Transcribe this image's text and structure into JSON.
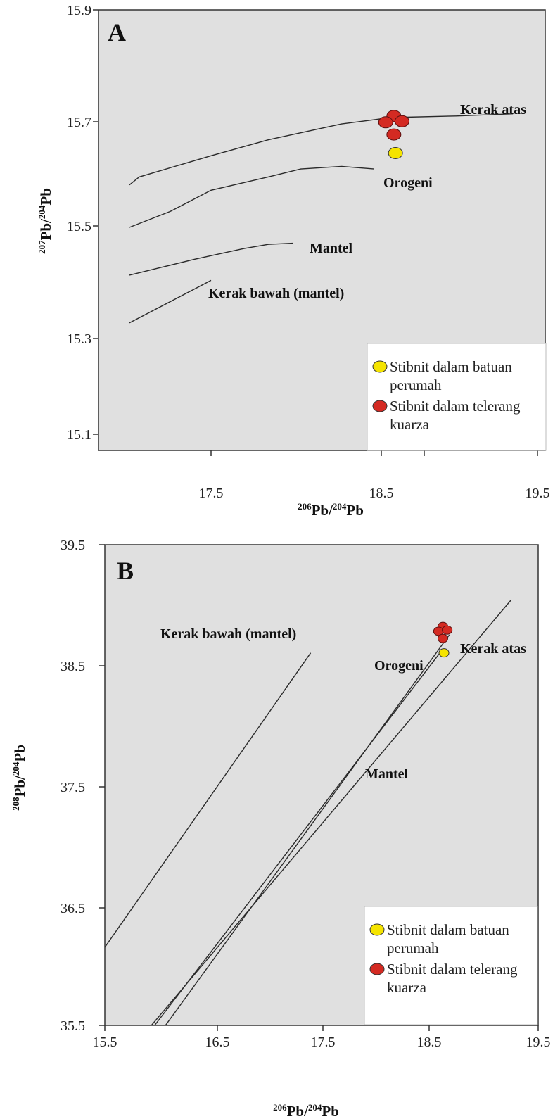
{
  "chart_data": [
    {
      "panel": "A",
      "type": "line",
      "xlabel": "206Pb/204Pb",
      "ylabel": "207Pb/204Pb",
      "xlabel_parts": {
        "sup1": "206",
        "base1": "Pb/",
        "sup2": "204",
        "base2": "Pb"
      },
      "ylabel_parts": {
        "sup1": "207",
        "base1": "Pb/",
        "sup2": "204",
        "base2": "Pb"
      },
      "xticks": [
        "17.5",
        "18.5",
        "19.5"
      ],
      "yticks": [
        "15.9",
        "15.7",
        "15.5",
        "15.3",
        "15.1"
      ],
      "xlim": [
        17.0,
        19.5
      ],
      "ylim": [
        15.07,
        15.9
      ],
      "grid": false,
      "background": "#e0e0e0",
      "series": [
        {
          "name": "Kerak atas",
          "x": [
            17.0,
            17.06,
            17.5,
            17.85,
            18.3,
            18.6,
            19.0,
            19.35
          ],
          "y": [
            15.57,
            15.585,
            15.625,
            15.655,
            15.685,
            15.697,
            15.7,
            15.704
          ]
        },
        {
          "name": "Orogeni",
          "x": [
            17.0,
            17.25,
            17.5,
            17.85,
            18.05,
            18.3,
            18.5
          ],
          "y": [
            15.49,
            15.52,
            15.56,
            15.585,
            15.6,
            15.605,
            15.6
          ]
        },
        {
          "name": "Mantel",
          "x": [
            17.0,
            17.4,
            17.7,
            17.85,
            18.0
          ],
          "y": [
            15.4,
            15.43,
            15.45,
            15.458,
            15.46
          ]
        },
        {
          "name": "Kerak bawah (mantel)",
          "x": [
            17.0,
            17.5
          ],
          "y": [
            15.31,
            15.39
          ]
        }
      ],
      "points": {
        "host_rock": [
          {
            "x": 18.63,
            "y": 15.63
          }
        ],
        "quartz_vein": [
          {
            "x": 18.62,
            "y": 15.7
          },
          {
            "x": 18.57,
            "y": 15.688
          },
          {
            "x": 18.67,
            "y": 15.69
          },
          {
            "x": 18.62,
            "y": 15.665
          }
        ]
      },
      "legend": {
        "placement": "bottom-right",
        "entries": [
          {
            "line1": "Stibnit dalam batuan",
            "line2": "perumah",
            "color": "#f5e400"
          },
          {
            "line1": "Stibnit dalam telerang",
            "line2": "kuarza",
            "color": "#d42a22"
          }
        ]
      }
    },
    {
      "panel": "B",
      "type": "line",
      "xlabel": "206Pb/204Pb",
      "ylabel": "208Pb/204Pb",
      "xlabel_parts": {
        "sup1": "206",
        "base1": "Pb/",
        "sup2": "204",
        "base2": "Pb"
      },
      "ylabel_parts": {
        "sup1": "208",
        "base1": "Pb/",
        "sup2": "204",
        "base2": "Pb"
      },
      "xticks": [
        "15.5",
        "16.5",
        "17.5",
        "18.5",
        "19.5"
      ],
      "yticks": [
        "39.5",
        "38.5",
        "37.5",
        "36.5",
        "35.5"
      ],
      "xlim": [
        15.5,
        19.5
      ],
      "ylim": [
        35.5,
        39.5
      ],
      "grid": false,
      "background": "#e0e0e0",
      "series": [
        {
          "name": "Kerak bawah (mantel)",
          "x": [
            15.5,
            17.4
          ],
          "y": [
            36.15,
            38.6
          ]
        },
        {
          "name": "Orogeni",
          "x": [
            15.96,
            18.61
          ],
          "y": [
            35.5,
            38.62
          ]
        },
        {
          "name": "Kerak atas",
          "x": [
            15.93,
            19.25
          ],
          "y": [
            35.5,
            39.04
          ]
        },
        {
          "name": "Mantel",
          "x": [
            16.06,
            18.68
          ],
          "y": [
            35.5,
            38.75
          ]
        }
      ],
      "points": {
        "host_rock": [
          {
            "x": 18.63,
            "y": 38.6
          }
        ],
        "quartz_vein": [
          {
            "x": 18.62,
            "y": 38.82
          },
          {
            "x": 18.58,
            "y": 38.78
          },
          {
            "x": 18.66,
            "y": 38.79
          },
          {
            "x": 18.62,
            "y": 38.72
          }
        ]
      },
      "legend": {
        "placement": "bottom-right",
        "entries": [
          {
            "line1": "Stibnit dalam batuan",
            "line2": "perumah",
            "color": "#f5e400"
          },
          {
            "line1": "Stibnit dalam telerang",
            "line2": "kuarza",
            "color": "#d42a22"
          }
        ]
      }
    }
  ],
  "colors": {
    "plot_bg": "#e0e0e0",
    "line": "#2a2a2a",
    "host_rock": "#f5e400",
    "quartz_vein": "#d42a22"
  }
}
